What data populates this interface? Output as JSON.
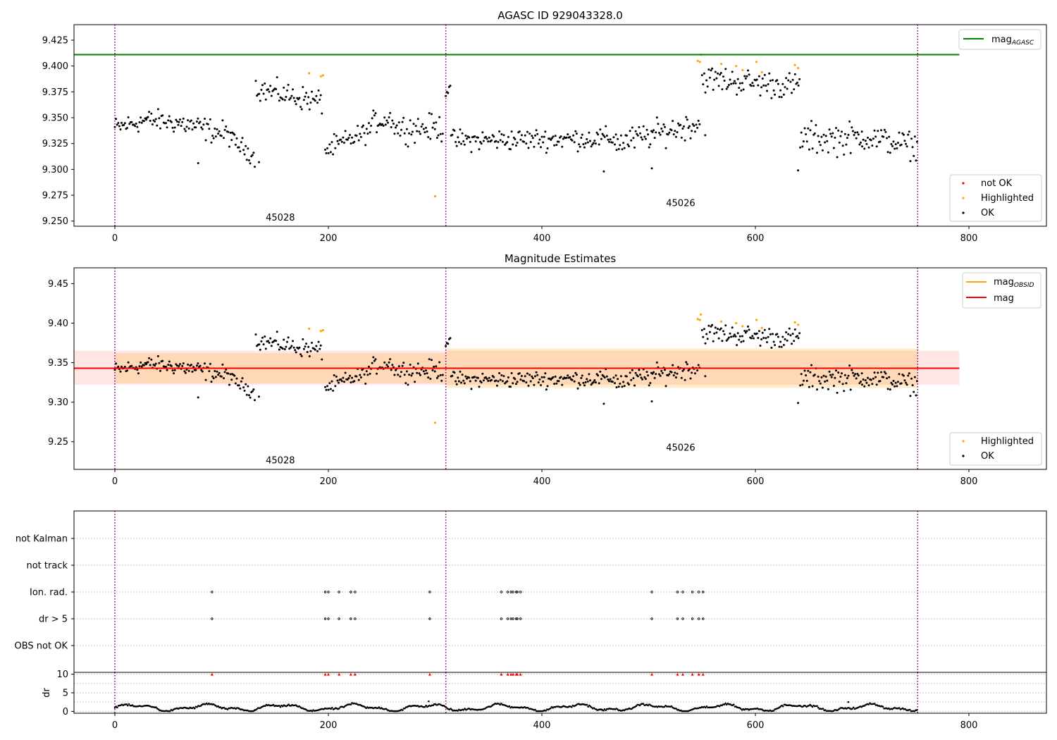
{
  "chart_data": [
    {
      "type": "scatter",
      "title": "AGASC ID 929043328.0",
      "xlim": [
        -38,
        1462
      ],
      "ylim": [
        9.245,
        9.44
      ],
      "yticks": [
        "9.250",
        "9.275",
        "9.300",
        "9.325",
        "9.350",
        "9.375",
        "9.400",
        "9.425"
      ],
      "xticks": [
        "0",
        "200",
        "400",
        "600",
        "800"
      ],
      "agasc_mag": 9.411,
      "line_x_range": [
        -38,
        791
      ],
      "obsid_boundaries": [
        0,
        310,
        752
      ],
      "obsid_labels": [
        {
          "text": "45028",
          "x": 155,
          "y": 9.254
        },
        {
          "text": "45026",
          "x": 530,
          "y": 9.268
        }
      ],
      "legend_upper": {
        "position": "top-right",
        "entries": [
          {
            "label": "mag",
            "subscript": "AGASC",
            "color": "#008000",
            "marker": "line"
          }
        ]
      },
      "legend_lower": {
        "position": "bottom-right",
        "entries": [
          {
            "label": "not OK",
            "color": "#ff0000",
            "marker": "point"
          },
          {
            "label": "Highlighted",
            "color": "#ffa500",
            "marker": "point"
          },
          {
            "label": "OK",
            "color": "#000000",
            "marker": "point"
          }
        ]
      },
      "highlighted_points": [
        [
          182,
          9.393
        ],
        [
          193,
          9.39
        ],
        [
          195,
          9.391
        ],
        [
          300,
          9.274
        ],
        [
          546,
          9.405
        ],
        [
          548,
          9.404
        ],
        [
          549,
          9.411
        ],
        [
          568,
          9.402
        ],
        [
          582,
          9.4
        ],
        [
          588,
          9.396
        ],
        [
          601,
          9.404
        ],
        [
          606,
          9.394
        ],
        [
          637,
          9.401
        ],
        [
          640,
          9.398
        ]
      ]
    },
    {
      "type": "scatter",
      "title": "Magnitude Estimates",
      "xlim": [
        -38,
        1462
      ],
      "ylim": [
        9.215,
        9.47
      ],
      "yticks": [
        "9.25",
        "9.30",
        "9.35",
        "9.40",
        "9.45"
      ],
      "xticks": [
        "0",
        "200",
        "400",
        "600",
        "800"
      ],
      "mag": 9.343,
      "mag_band": [
        9.322,
        9.365
      ],
      "obsid_segments": [
        {
          "x": [
            0,
            310
          ],
          "mag": 9.343,
          "band": [
            9.324,
            9.362
          ]
        },
        {
          "x": [
            310,
            752
          ],
          "mag": 9.343,
          "band": [
            9.318,
            9.368
          ]
        }
      ],
      "obsid_labels": [
        {
          "text": "45028",
          "x": 155,
          "y": 9.227
        },
        {
          "text": "45026",
          "x": 530,
          "y": 9.243
        }
      ],
      "legend_upper": {
        "position": "top-right",
        "entries": [
          {
            "label": "mag",
            "subscript": "OBSID",
            "color": "#ffa500",
            "marker": "line"
          },
          {
            "label": "mag",
            "subscript": "",
            "color": "#ff0000",
            "marker": "line"
          }
        ]
      },
      "legend_lower": {
        "position": "bottom-right",
        "entries": [
          {
            "label": "Highlighted",
            "color": "#ffa500",
            "marker": "point"
          },
          {
            "label": "OK",
            "color": "#000000",
            "marker": "point"
          }
        ]
      }
    },
    {
      "type": "scatter",
      "title": "",
      "categories": [
        "not Kalman",
        "not track",
        "Ion. rad.",
        "dr > 5",
        "OBS not OK"
      ],
      "flag_x": {
        "not Kalman": [],
        "not track": [],
        "Ion. rad.": [
          91,
          197,
          200,
          210,
          221,
          225,
          295,
          362,
          368,
          371,
          373,
          376,
          377,
          380,
          503,
          527,
          532,
          541,
          547,
          551
        ],
        "dr > 5": [
          91,
          197,
          200,
          210,
          221,
          225,
          295,
          362,
          368,
          371,
          373,
          376,
          377,
          380,
          503,
          527,
          532,
          541,
          547,
          551
        ],
        "OBS not OK": []
      }
    },
    {
      "type": "line",
      "title": "",
      "ylabel": "dr",
      "ylim": [
        -0.5,
        10.5
      ],
      "yticks": [
        "0",
        "5",
        "10"
      ],
      "xticks": [
        "0",
        "200",
        "400",
        "600",
        "800"
      ],
      "clipped_value": 10,
      "clipped_color": "#ff0000"
    }
  ]
}
